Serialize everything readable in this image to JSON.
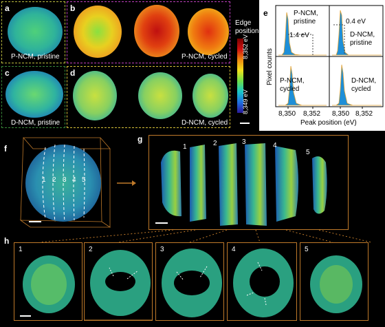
{
  "panel_labels": {
    "a": "a",
    "b": "b",
    "c": "c",
    "d": "d",
    "e": "e",
    "f": "f",
    "g": "g",
    "h": "h"
  },
  "captions": {
    "a": "P-NCM, pristine",
    "b": "P-NCM, cycled",
    "c": "D-NCM, pristine",
    "d": "D-NCM, cycled"
  },
  "colorbar": {
    "title_line1": "Edge",
    "title_line2": "position",
    "top_label": "8,352 eV",
    "bottom_label": "8,349 eV",
    "colors": [
      "#2a1a9a",
      "#1f6fe0",
      "#18c8c8",
      "#6de04a",
      "#f2e21c",
      "#f08a10",
      "#d01010",
      "#7a0000"
    ]
  },
  "panel_e": {
    "ylabel": "Pixel counts",
    "xlabel": "Peak position (eV)",
    "tick_left_a": "8,350",
    "tick_left_b": "8,352",
    "tick_right_a": "8,350",
    "tick_right_b": "8,352",
    "q1_label_line1": "P-NCM,",
    "q1_label_line2": "pristine",
    "q1_shift": "1.4 eV",
    "q2_label_line1": "D-NCM,",
    "q2_label_line2": "pristine",
    "q2_shift": "0.4 eV",
    "q3_label_line1": "P-NCM,",
    "q3_label_line2": "cycled",
    "q4_label_line1": "D-NCM,",
    "q4_label_line2": "cycled"
  },
  "panel_f": {
    "slice_numbers": [
      "1",
      "2",
      "3",
      "4",
      "5"
    ]
  },
  "panel_g": {
    "slice_numbers": [
      "1",
      "2",
      "3",
      "4",
      "5"
    ]
  },
  "panel_h": {
    "slice_numbers": [
      "1",
      "2",
      "3",
      "4",
      "5"
    ]
  },
  "colors": {
    "frame_orange": "#c07a2a",
    "frame_magenta": "#c040c0",
    "frame_green": "#3a8a3a",
    "frame_yellow": "#d8c23a",
    "histogram_blue": "#1e8fd8",
    "histogram_edge": "#e0a030"
  }
}
